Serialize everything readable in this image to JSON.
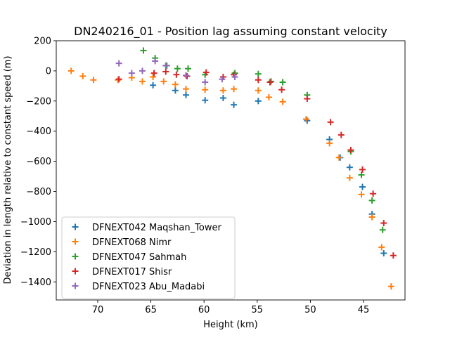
{
  "chart_data": {
    "type": "scatter",
    "title": "DN240216_01 - Position lag assuming constant velocity",
    "xlabel": "Height (km)",
    "ylabel": "Deviation in length relative to constant speed (m)",
    "xlim": [
      73.9,
      41.1
    ],
    "ylim": [
      -1520,
      200
    ],
    "x_ticks": [
      70,
      65,
      60,
      55,
      50,
      45
    ],
    "y_ticks": [
      200,
      0,
      -200,
      -400,
      -600,
      -800,
      -1000,
      -1200,
      -1400
    ],
    "grid": false,
    "legend_position": "lower-left",
    "marker": "plus",
    "series": [
      {
        "name": "DFNEXT042 Maqshan_Tower",
        "color": "#1f77b4",
        "points": [
          [
            64.8,
            -95
          ],
          [
            62.7,
            -130
          ],
          [
            61.7,
            -160
          ],
          [
            59.9,
            -195
          ],
          [
            58.2,
            -180
          ],
          [
            57.2,
            -225
          ],
          [
            54.9,
            -200
          ],
          [
            50.3,
            -330
          ],
          [
            48.2,
            -455
          ],
          [
            47.2,
            -575
          ],
          [
            46.3,
            -640
          ],
          [
            45.1,
            -770
          ],
          [
            44.2,
            -950
          ],
          [
            43.1,
            -1210
          ]
        ]
      },
      {
        "name": "DFNEXT068 Nimr",
        "color": "#ff7f0e",
        "points": [
          [
            72.5,
            0
          ],
          [
            71.4,
            -35
          ],
          [
            70.4,
            -60
          ],
          [
            68.1,
            -60
          ],
          [
            66.8,
            -45
          ],
          [
            65.8,
            -70
          ],
          [
            64.8,
            -40
          ],
          [
            63.8,
            -70
          ],
          [
            62.7,
            -90
          ],
          [
            61.7,
            -120
          ],
          [
            59.9,
            -125
          ],
          [
            58.2,
            -130
          ],
          [
            57.2,
            -120
          ],
          [
            54.9,
            -130
          ],
          [
            53.9,
            -175
          ],
          [
            52.6,
            -205
          ],
          [
            50.4,
            -320
          ],
          [
            48.2,
            -480
          ],
          [
            47.3,
            -575
          ],
          [
            46.3,
            -710
          ],
          [
            45.2,
            -820
          ],
          [
            44.2,
            -970
          ],
          [
            43.3,
            -1170
          ],
          [
            42.4,
            -1430
          ]
        ]
      },
      {
        "name": "DFNEXT047 Sahmah",
        "color": "#2ca02c",
        "points": [
          [
            65.7,
            135
          ],
          [
            64.6,
            85
          ],
          [
            63.5,
            35
          ],
          [
            62.5,
            15
          ],
          [
            61.5,
            15
          ],
          [
            59.9,
            -25
          ],
          [
            57.1,
            -15
          ],
          [
            54.9,
            -20
          ],
          [
            53.7,
            -70
          ],
          [
            52.6,
            -75
          ],
          [
            50.3,
            -160
          ],
          [
            46.2,
            -535
          ],
          [
            45.2,
            -690
          ],
          [
            44.2,
            -860
          ],
          [
            43.2,
            -1055
          ]
        ]
      },
      {
        "name": "DFNEXT017 Shisr",
        "color": "#d62728",
        "points": [
          [
            68.0,
            -55
          ],
          [
            64.7,
            -15
          ],
          [
            63.6,
            -5
          ],
          [
            62.6,
            -25
          ],
          [
            61.6,
            -35
          ],
          [
            59.8,
            -10
          ],
          [
            58.2,
            -40
          ],
          [
            57.2,
            -25
          ],
          [
            54.9,
            -60
          ],
          [
            53.8,
            -75
          ],
          [
            52.7,
            -125
          ],
          [
            50.3,
            -185
          ],
          [
            48.1,
            -340
          ],
          [
            47.1,
            -425
          ],
          [
            46.2,
            -525
          ],
          [
            45.1,
            -655
          ],
          [
            44.1,
            -815
          ],
          [
            43.1,
            -1010
          ],
          [
            42.2,
            -1225
          ]
        ]
      },
      {
        "name": "DFNEXT023 Abu_Madabi",
        "color": "#9467bd",
        "points": [
          [
            68.0,
            50
          ],
          [
            66.8,
            -15
          ],
          [
            65.8,
            0
          ],
          [
            64.6,
            65
          ],
          [
            63.6,
            35
          ],
          [
            61.7,
            -30
          ],
          [
            59.9,
            -75
          ],
          [
            58.3,
            -55
          ],
          [
            57.1,
            -40
          ]
        ]
      }
    ]
  }
}
